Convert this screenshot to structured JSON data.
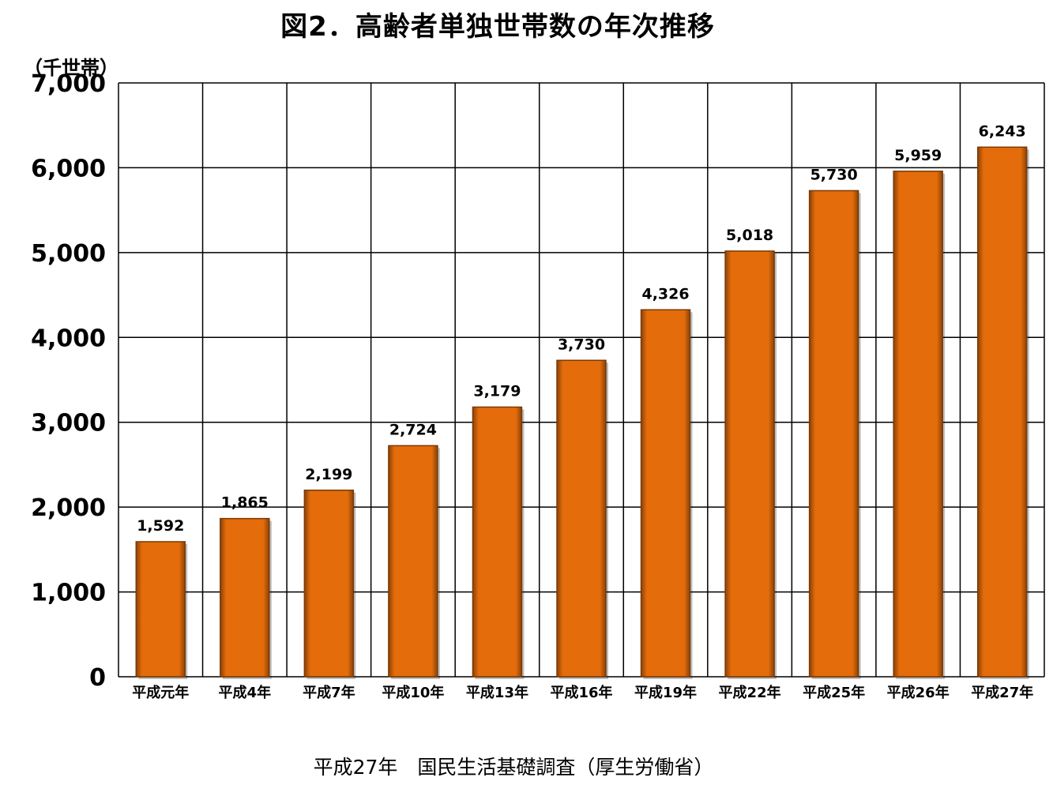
{
  "chart_data": {
    "type": "bar",
    "title": "図2．高齢者単独世帯数の年次推移",
    "ylabel": "（千世帯）",
    "xlabel": "",
    "categories": [
      "平成元年",
      "平成4年",
      "平成7年",
      "平成10年",
      "平成13年",
      "平成16年",
      "平成19年",
      "平成22年",
      "平成25年",
      "平成26年",
      "平成27年"
    ],
    "values": [
      1592,
      1865,
      2199,
      2724,
      3179,
      3730,
      4326,
      5018,
      5730,
      5959,
      6243
    ],
    "value_labels": [
      "1,592",
      "1,865",
      "2,199",
      "2,724",
      "3,179",
      "3,730",
      "4,326",
      "5,018",
      "5,730",
      "5,959",
      "6,243"
    ],
    "ylim": [
      0,
      7000
    ],
    "yticks": [
      0,
      1000,
      2000,
      3000,
      4000,
      5000,
      6000,
      7000
    ],
    "ytick_labels": [
      "0",
      "1,000",
      "2,000",
      "3,000",
      "4,000",
      "5,000",
      "6,000",
      "7,000"
    ],
    "grid": true,
    "legend": "none",
    "bar_color": "#e46c0a",
    "bar_edge_color": "#7a3a08"
  },
  "source": "平成27年　国民生活基礎調査（厚生労働省）"
}
